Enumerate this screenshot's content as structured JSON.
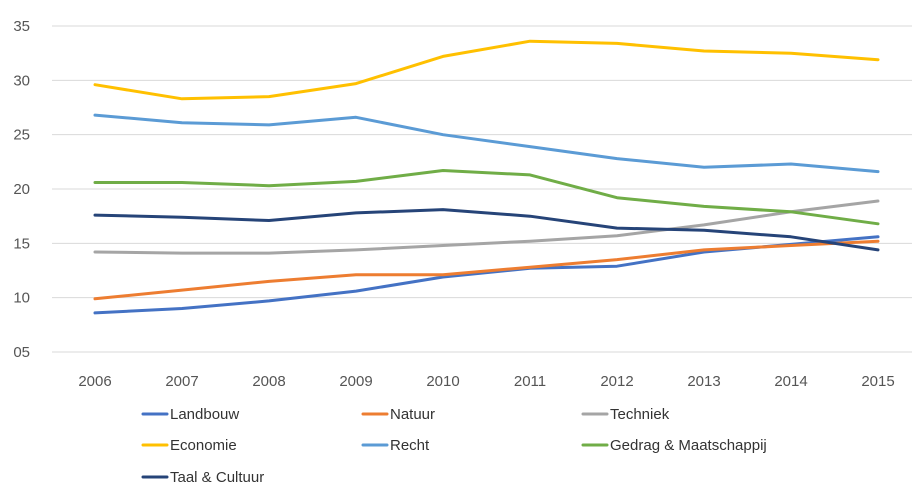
{
  "chart_data": {
    "type": "line",
    "title": "",
    "xlabel": "",
    "ylabel": "",
    "x": [
      "2006",
      "2007",
      "2008",
      "2009",
      "2010",
      "2011",
      "2012",
      "2013",
      "2014",
      "2015"
    ],
    "y_ticks": [
      "05",
      "10",
      "15",
      "20",
      "25",
      "30",
      "35"
    ],
    "y_tick_values": [
      5,
      10,
      15,
      20,
      25,
      30,
      35
    ],
    "ylim": [
      5,
      35
    ],
    "grid": true,
    "legend_position": "bottom",
    "series": [
      {
        "name": "Landbouw",
        "color": "#4472c4",
        "values": [
          8.6,
          9.0,
          9.7,
          10.6,
          11.9,
          12.7,
          12.9,
          14.2,
          14.9,
          15.6
        ]
      },
      {
        "name": "Natuur",
        "color": "#ed7d31",
        "values": [
          9.9,
          10.7,
          11.5,
          12.1,
          12.1,
          12.8,
          13.5,
          14.4,
          14.8,
          15.2
        ]
      },
      {
        "name": "Techniek",
        "color": "#a5a5a5",
        "values": [
          14.2,
          14.1,
          14.1,
          14.4,
          14.8,
          15.2,
          15.7,
          16.7,
          17.9,
          18.9
        ]
      },
      {
        "name": "Economie",
        "color": "#ffc000",
        "values": [
          29.6,
          28.3,
          28.5,
          29.7,
          32.2,
          33.6,
          33.4,
          32.7,
          32.5,
          31.9
        ]
      },
      {
        "name": "Recht",
        "color": "#5b9bd5",
        "values": [
          26.8,
          26.1,
          25.9,
          26.6,
          25.0,
          23.9,
          22.8,
          22.0,
          22.3,
          21.6
        ]
      },
      {
        "name": "Gedrag & Maatschappij",
        "color": "#70ad47",
        "values": [
          20.6,
          20.6,
          20.3,
          20.7,
          21.7,
          21.3,
          19.2,
          18.4,
          17.9,
          16.8
        ]
      },
      {
        "name": "Taal & Cultuur",
        "color": "#264478",
        "values": [
          17.6,
          17.4,
          17.1,
          17.8,
          18.1,
          17.5,
          16.4,
          16.2,
          15.6,
          14.4
        ]
      }
    ]
  }
}
